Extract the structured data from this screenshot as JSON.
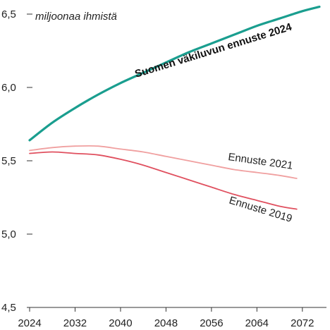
{
  "chart_data": {
    "type": "line",
    "ylabel": "miljoonaa ihmistä",
    "xlabel": "",
    "xlim": [
      2024,
      2075
    ],
    "ylim": [
      4.5,
      6.5
    ],
    "x_ticks": [
      2024,
      2032,
      2040,
      2048,
      2056,
      2064,
      2072
    ],
    "x_tick_labels": [
      "2024",
      "2032",
      "2040",
      "2048",
      "2056",
      "2064",
      "2072"
    ],
    "y_ticks": [
      4.5,
      5.0,
      5.5,
      6.0,
      6.5
    ],
    "y_tick_labels": [
      "4,5",
      "5,0",
      "5,5",
      "6,0",
      "6,5"
    ],
    "grid": false,
    "series": [
      {
        "name": "Suomen väkiluvun ennuste 2024",
        "color": "#1a9e8f",
        "x": [
          2024,
          2028,
          2032,
          2036,
          2040,
          2044,
          2048,
          2052,
          2056,
          2060,
          2064,
          2068,
          2072,
          2075
        ],
        "values": [
          5.64,
          5.76,
          5.86,
          5.95,
          6.03,
          6.1,
          6.17,
          6.24,
          6.3,
          6.36,
          6.42,
          6.47,
          6.52,
          6.55
        ]
      },
      {
        "name": "Ennuste 2021",
        "color": "#f0a0a0",
        "x": [
          2024,
          2028,
          2032,
          2036,
          2040,
          2044,
          2048,
          2052,
          2056,
          2060,
          2064,
          2068,
          2071
        ],
        "values": [
          5.57,
          5.59,
          5.6,
          5.6,
          5.58,
          5.56,
          5.53,
          5.5,
          5.47,
          5.44,
          5.42,
          5.4,
          5.38
        ]
      },
      {
        "name": "Ennuste 2019",
        "color": "#e0505f",
        "x": [
          2024,
          2028,
          2032,
          2036,
          2040,
          2044,
          2048,
          2052,
          2056,
          2060,
          2064,
          2068,
          2071
        ],
        "values": [
          5.55,
          5.56,
          5.55,
          5.54,
          5.51,
          5.47,
          5.42,
          5.37,
          5.32,
          5.27,
          5.23,
          5.19,
          5.17
        ]
      }
    ]
  }
}
